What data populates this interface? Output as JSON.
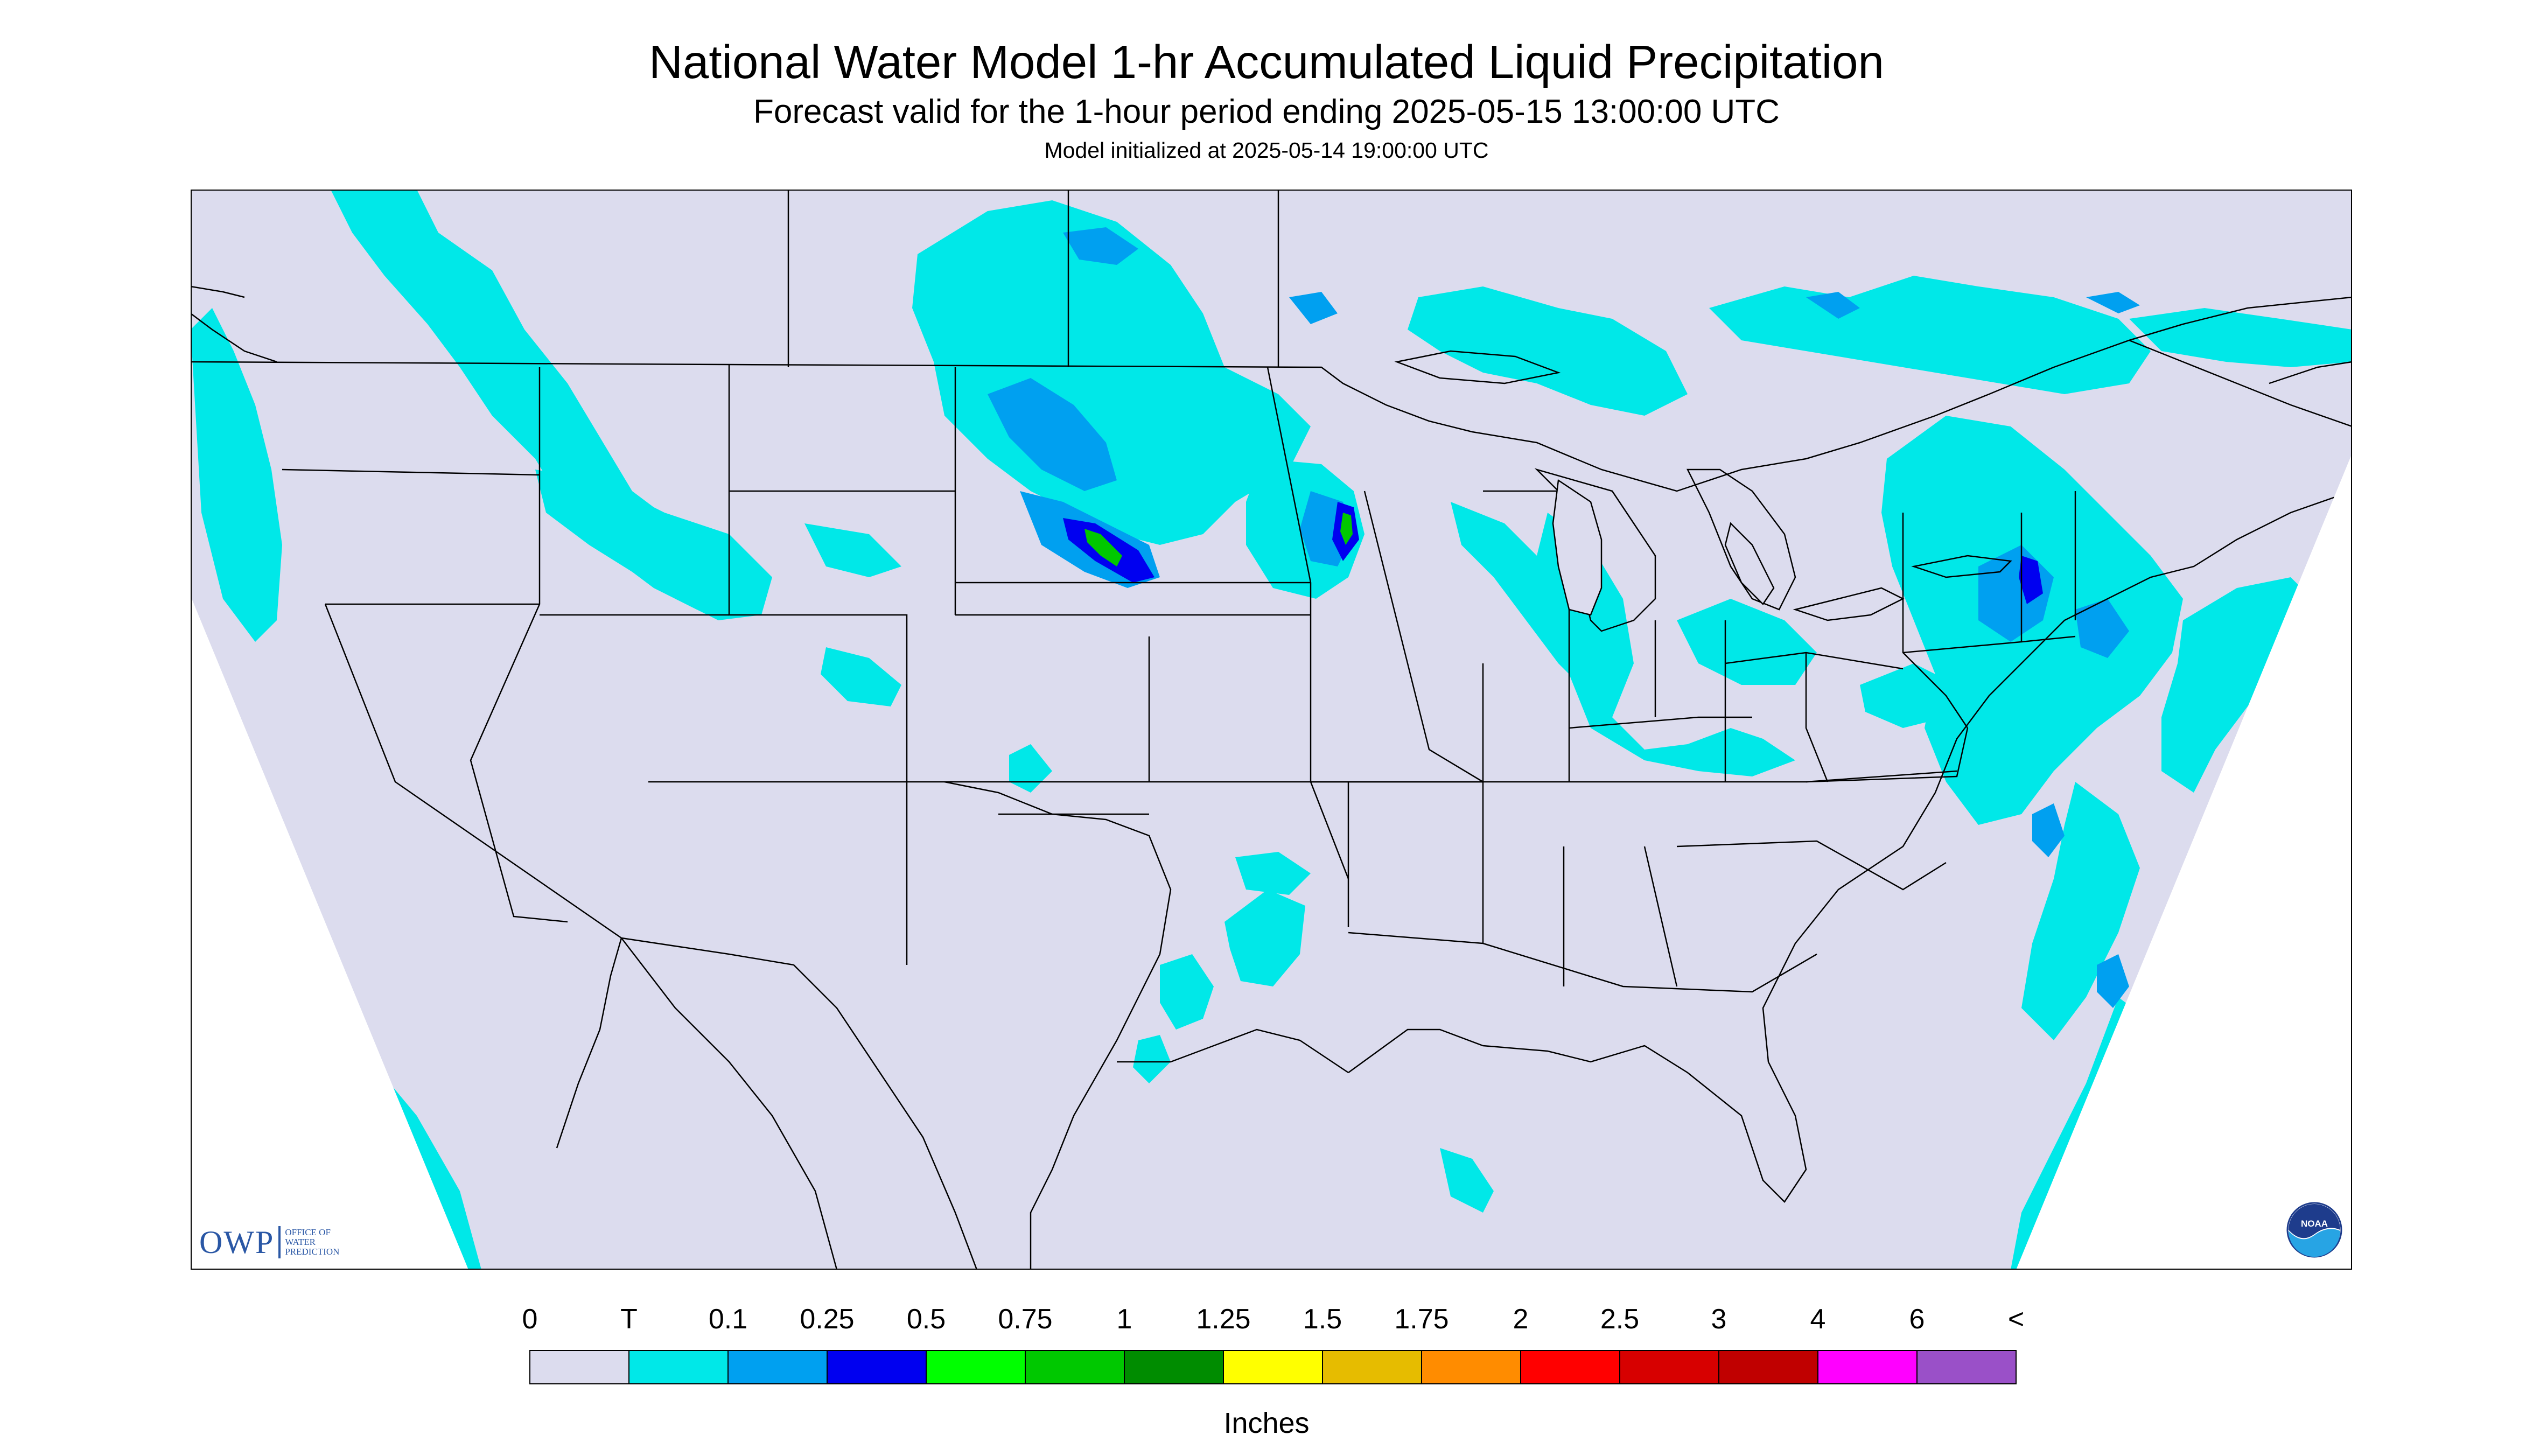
{
  "header": {
    "title": "National Water Model 1-hr Accumulated Liquid Precipitation",
    "subtitle": "Forecast valid for the 1-hour period ending 2025-05-15 13:00:00 UTC",
    "model_init": "Model initialized at 2025-05-14 19:00:00 UTC"
  },
  "legend": {
    "labels": [
      "0",
      "T",
      "0.1",
      "0.25",
      "0.5",
      "0.75",
      "1",
      "1.25",
      "1.5",
      "1.75",
      "2",
      "2.5",
      "3",
      "4",
      "6",
      "<"
    ],
    "colors": [
      "#dcdcee",
      "#00e8e8",
      "#00a0f0",
      "#0000f0",
      "#00ff00",
      "#00c800",
      "#008c00",
      "#ffff00",
      "#e6bc00",
      "#ff8c00",
      "#ff0000",
      "#d70000",
      "#c00000",
      "#ff00ff",
      "#9a50c8"
    ],
    "units": "Inches"
  },
  "logos": {
    "owp_text": "OWP",
    "owp_subtext": "OFFICE OF WATER PREDICTION",
    "noaa_text": "NOAA"
  },
  "colors": {
    "no_precip": "#dcdcee",
    "trace": "#00e8e8",
    "light": "#00a0f0",
    "moderate": "#0000f0",
    "heavy": "#00c800",
    "boundary": "#000000"
  }
}
